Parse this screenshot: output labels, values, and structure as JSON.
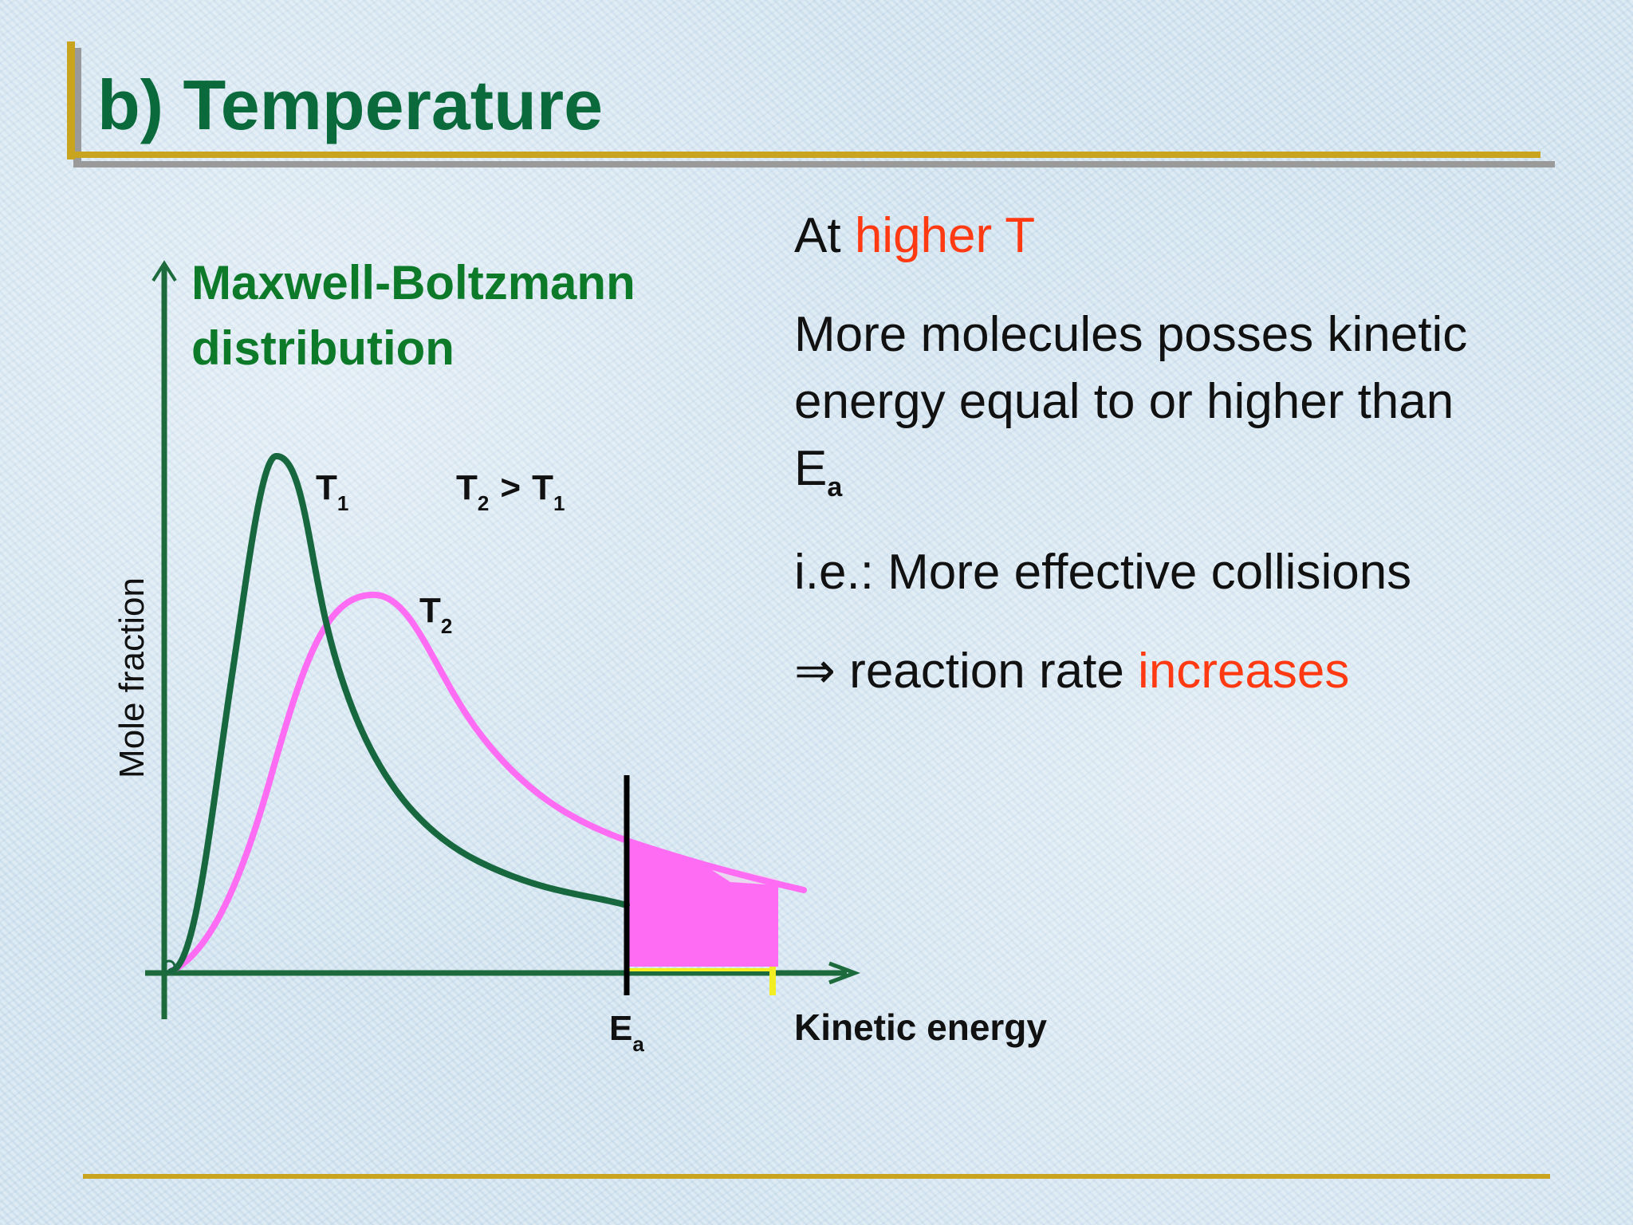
{
  "title": "b) Temperature",
  "diagram": {
    "heading_line1": "Maxwell-Boltzmann",
    "heading_line2": "distribution",
    "y_axis_label": "Mole fraction",
    "x_axis_label": "Kinetic energy",
    "curve1_label": "T",
    "curve1_sub": "1",
    "curve2_label": "T",
    "curve2_sub": "2",
    "relation": {
      "t2": "T",
      "t2_sub": "2",
      "gt": ">",
      "t1": "T",
      "t1_sub": "1"
    },
    "ea_label": "E",
    "ea_sub": "a"
  },
  "text": {
    "line1_prefix": "At ",
    "line1_highlight": "higher T",
    "line2": "More molecules posses kinetic",
    "line3": "energy equal to or higher than",
    "line4_main": "E",
    "line4_sub": "a",
    "line5": "i.e.:  More effective collisions",
    "line6_prefix": "⇒ reaction rate ",
    "line6_highlight": "increases"
  },
  "colors": {
    "title": "#0a6a3b",
    "heading": "#0d7a2a",
    "axis": "#1d6b3c",
    "curve_t1": "#17683f",
    "curve_t2": "#ff6cf4",
    "highlight": "#ff3a12",
    "rule_gold": "#c9a41e",
    "rule_gray": "#9a9a9a"
  }
}
